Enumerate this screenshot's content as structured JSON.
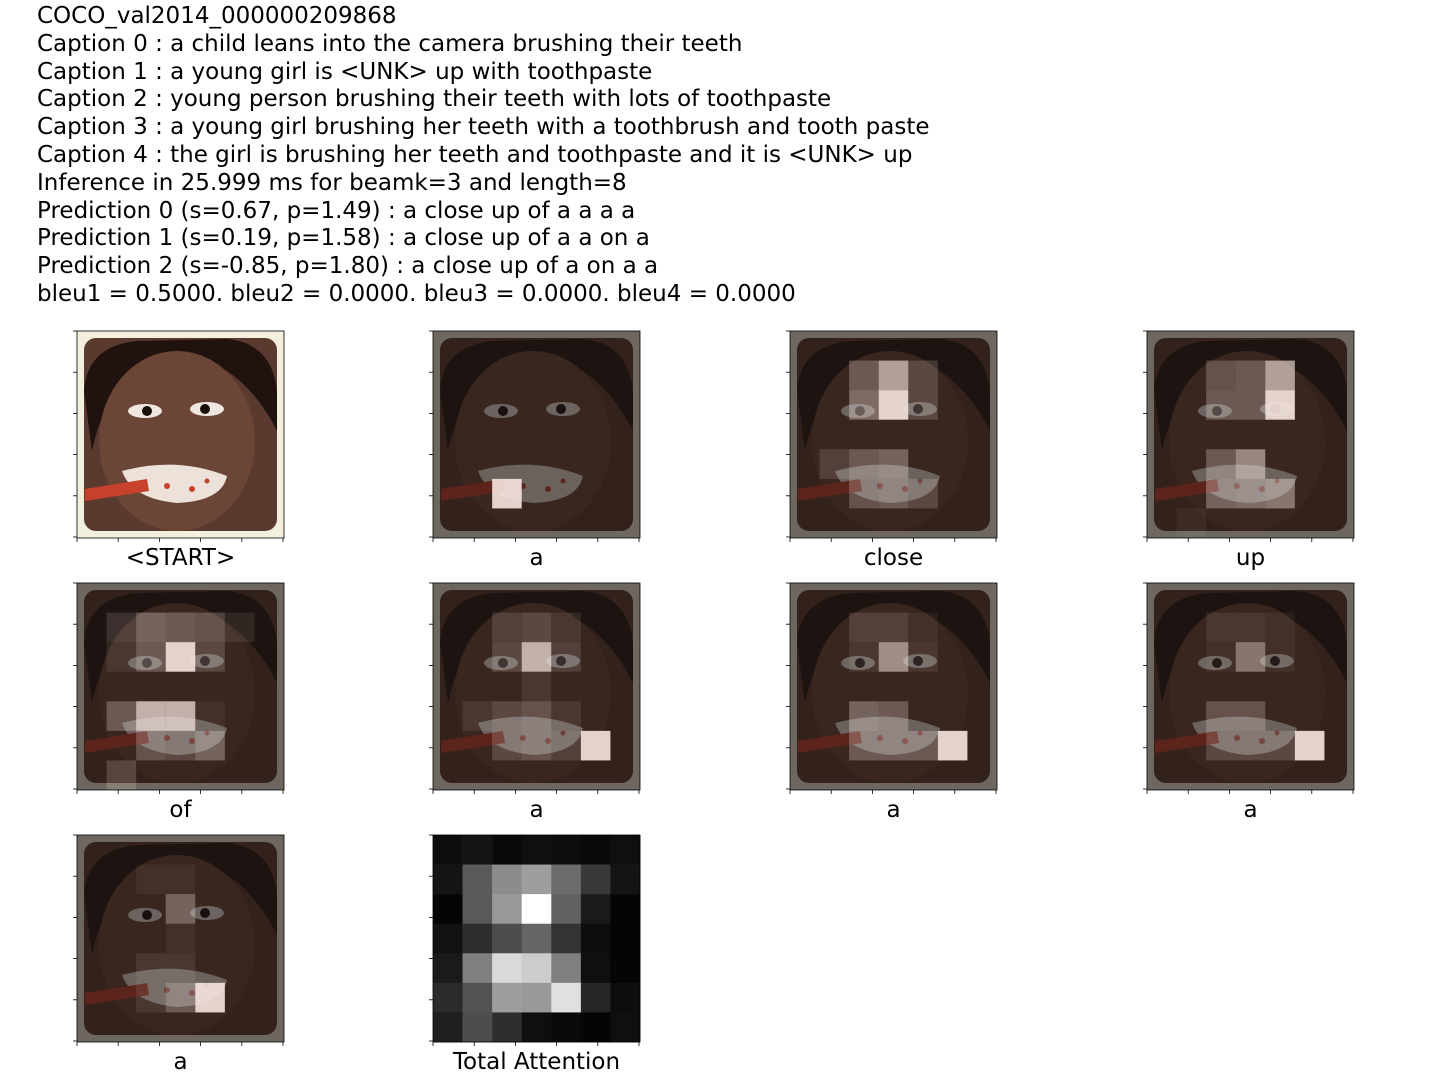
{
  "header": {
    "image_id": "COCO_val2014_000000209868",
    "captions": [
      "Caption 0 : a child leans into the camera brushing their teeth",
      "Caption 1 : a young girl is <UNK> up with toothpaste",
      "Caption 2 : young person brushing their teeth with lots of toothpaste",
      "Caption 3 : a young girl brushing her teeth with a toothbrush and tooth paste",
      "Caption 4 : the girl is brushing her teeth and toothpaste and it is <UNK> up"
    ],
    "inference": "Inference in 25.999 ms for beamk=3 and length=8",
    "predictions": [
      "Prediction 0 (s=0.67, p=1.49) : a close up of a a a a",
      "Prediction 1 (s=0.19, p=1.58) : a close up of a a on a",
      "Prediction 2 (s=-0.85, p=1.80) : a close up of a on a a"
    ],
    "bleu": "bleu1 = 0.5000. bleu2 = 0.0000. bleu3 = 0.0000. bleu4 = 0.0000"
  },
  "panels": [
    {
      "word": "<START>"
    },
    {
      "word": "a"
    },
    {
      "word": "close"
    },
    {
      "word": "up"
    },
    {
      "word": "of"
    },
    {
      "word": "a"
    },
    {
      "word": "a"
    },
    {
      "word": "a"
    },
    {
      "word": "a"
    },
    {
      "word": "Total Attention"
    }
  ],
  "attention_grid_size": 7,
  "attention": [
    [
      [
        0,
        0,
        0,
        0,
        0,
        0,
        0
      ],
      [
        0,
        0,
        0,
        0,
        0,
        0,
        0
      ],
      [
        0,
        0,
        0,
        0,
        0,
        0,
        0
      ],
      [
        0,
        0,
        0,
        0,
        0,
        0,
        0
      ],
      [
        0,
        0,
        0,
        0,
        0,
        0,
        0
      ],
      [
        0,
        0,
        1,
        0,
        0,
        0,
        0
      ],
      [
        0,
        0,
        0,
        0,
        0,
        0,
        0
      ]
    ],
    [
      [
        0,
        0,
        0,
        0,
        0,
        0,
        0
      ],
      [
        0,
        0,
        0.3,
        0.7,
        0.2,
        0,
        0
      ],
      [
        0,
        0,
        0.4,
        1,
        0.2,
        0,
        0
      ],
      [
        0,
        0,
        0,
        0,
        0,
        0,
        0
      ],
      [
        0,
        0.15,
        0.3,
        0.35,
        0,
        0,
        0
      ],
      [
        0,
        0,
        0.25,
        0.3,
        0.2,
        0,
        0
      ],
      [
        0,
        0,
        0,
        0,
        0,
        0,
        0
      ]
    ],
    [
      [
        0,
        0,
        0,
        0,
        0,
        0,
        0
      ],
      [
        0,
        0,
        0.25,
        0.3,
        0.7,
        0,
        0
      ],
      [
        0,
        0,
        0.3,
        0.3,
        1,
        0,
        0
      ],
      [
        0,
        0,
        0,
        0,
        0,
        0,
        0
      ],
      [
        0,
        0,
        0.3,
        0.55,
        0,
        0,
        0
      ],
      [
        0,
        0,
        0.35,
        0.4,
        0.45,
        0,
        0
      ],
      [
        0,
        0.05,
        0,
        0,
        0,
        0,
        0
      ]
    ],
    [
      [
        0,
        0,
        0,
        0,
        0,
        0,
        0
      ],
      [
        0,
        0.15,
        0.35,
        0.3,
        0.25,
        0.1,
        0
      ],
      [
        0,
        0.1,
        0.3,
        1,
        0.2,
        0,
        0
      ],
      [
        0,
        0,
        0,
        0,
        0,
        0,
        0
      ],
      [
        0,
        0.3,
        0.8,
        0.8,
        0.05,
        0,
        0
      ],
      [
        0,
        0,
        0.25,
        0.2,
        0.35,
        0,
        0
      ],
      [
        0,
        0.2,
        0,
        0,
        0,
        0,
        0
      ]
    ],
    [
      [
        0,
        0,
        0,
        0,
        0,
        0,
        0
      ],
      [
        0,
        0,
        0.15,
        0.2,
        0.1,
        0,
        0
      ],
      [
        0,
        0,
        0.2,
        0.8,
        0.15,
        0,
        0
      ],
      [
        0,
        0,
        0,
        0.1,
        0,
        0,
        0
      ],
      [
        0,
        0.1,
        0.2,
        0.25,
        0.1,
        0,
        0
      ],
      [
        0,
        0,
        0.2,
        0.25,
        0.15,
        1,
        0
      ],
      [
        0,
        0,
        0,
        0,
        0,
        0,
        0
      ]
    ],
    [
      [
        0,
        0,
        0,
        0,
        0,
        0,
        0
      ],
      [
        0,
        0,
        0.15,
        0.15,
        0.05,
        0,
        0
      ],
      [
        0,
        0,
        0.1,
        0.6,
        0.1,
        0,
        0
      ],
      [
        0,
        0,
        0,
        0,
        0,
        0,
        0
      ],
      [
        0,
        0,
        0.35,
        0.3,
        0,
        0,
        0
      ],
      [
        0,
        0,
        0.3,
        0.3,
        0.3,
        1,
        0
      ],
      [
        0,
        0,
        0,
        0,
        0,
        0,
        0
      ]
    ],
    [
      [
        0,
        0,
        0,
        0,
        0,
        0,
        0
      ],
      [
        0,
        0,
        0.1,
        0.1,
        0.05,
        0,
        0
      ],
      [
        0,
        0,
        0.05,
        0.45,
        0.05,
        0,
        0
      ],
      [
        0,
        0,
        0,
        0,
        0,
        0,
        0
      ],
      [
        0,
        0,
        0.25,
        0.25,
        0,
        0,
        0
      ],
      [
        0,
        0,
        0.2,
        0.2,
        0.2,
        1,
        0
      ],
      [
        0,
        0,
        0,
        0,
        0,
        0,
        0
      ]
    ],
    [
      [
        0,
        0,
        0,
        0,
        0,
        0,
        0
      ],
      [
        0,
        0,
        0.05,
        0.05,
        0,
        0,
        0
      ],
      [
        0,
        0,
        0,
        0.35,
        0,
        0,
        0
      ],
      [
        0,
        0,
        0,
        0.05,
        0,
        0,
        0
      ],
      [
        0,
        0,
        0.1,
        0.1,
        0,
        0,
        0
      ],
      [
        0,
        0,
        0.1,
        0.3,
        1,
        0,
        0
      ],
      [
        0,
        0,
        0,
        0,
        0,
        0,
        0
      ]
    ],
    [
      [
        0.05,
        0.08,
        0.04,
        0.06,
        0.05,
        0.04,
        0.06
      ],
      [
        0.08,
        0.35,
        0.55,
        0.62,
        0.42,
        0.22,
        0.08
      ],
      [
        0.02,
        0.35,
        0.6,
        1,
        0.38,
        0.1,
        0.02
      ],
      [
        0.07,
        0.18,
        0.3,
        0.4,
        0.2,
        0.05,
        0.02
      ],
      [
        0.1,
        0.5,
        0.85,
        0.8,
        0.5,
        0.06,
        0.02
      ],
      [
        0.17,
        0.32,
        0.62,
        0.6,
        0.88,
        0.15,
        0.05
      ],
      [
        0.12,
        0.3,
        0.18,
        0.06,
        0.04,
        0.02,
        0.06
      ]
    ]
  ],
  "colors": {
    "highlight": "#f7e6e0",
    "skin_dark": "#3a2620",
    "skin_mid": "#5a3a2e",
    "hair": "#20130f",
    "frame_light": "#f2efdc",
    "toothbrush": "#c8412d",
    "foam": "#ece2da"
  }
}
